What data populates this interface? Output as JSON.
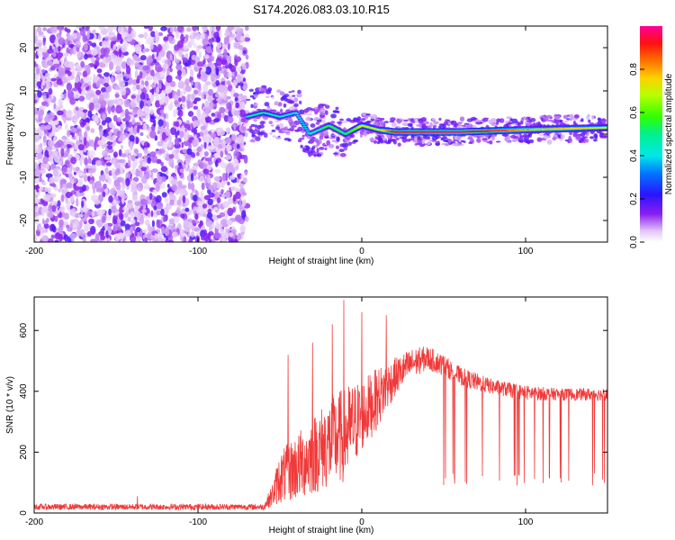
{
  "title": "S174.2026.083.03.10.R15",
  "chart_data": [
    {
      "type": "heatmap",
      "name": "spectrogram",
      "title": "S174.2026.083.03.10.R15",
      "xlabel": "Height of straight line (km)",
      "ylabel": "Frequency (Hz)",
      "xlim": [
        -200,
        150
      ],
      "ylim": [
        -25,
        25
      ],
      "xticks": [
        -200,
        -100,
        0,
        100
      ],
      "yticks": [
        -20,
        -10,
        0,
        10,
        20
      ],
      "noise_region_x": [
        -200,
        -70
      ],
      "signal_trace": [
        {
          "x": -70,
          "y": 4,
          "amp": 0.45
        },
        {
          "x": -60,
          "y": 5,
          "amp": 0.5
        },
        {
          "x": -50,
          "y": 4,
          "amp": 0.45
        },
        {
          "x": -40,
          "y": 5,
          "amp": 0.4
        },
        {
          "x": -32,
          "y": 0,
          "amp": 0.4
        },
        {
          "x": -20,
          "y": 2,
          "amp": 0.55
        },
        {
          "x": -10,
          "y": 0,
          "amp": 0.5
        },
        {
          "x": 0,
          "y": 2,
          "amp": 0.7
        },
        {
          "x": 10,
          "y": 1,
          "amp": 0.65
        },
        {
          "x": 20,
          "y": 0.5,
          "amp": 0.95
        },
        {
          "x": 60,
          "y": 0.5,
          "amp": 1.0
        },
        {
          "x": 100,
          "y": 1,
          "amp": 0.8
        },
        {
          "x": 150,
          "y": 1.5,
          "amp": 0.7
        }
      ],
      "colorbar": {
        "label": "Normalized spectral amplitude",
        "range": [
          0,
          1
        ],
        "ticks": [
          0.0,
          0.2,
          0.4,
          0.6,
          0.8
        ],
        "tick_labels": [
          "0.0",
          "0.2",
          "0.4",
          "0.6",
          "0.8"
        ]
      }
    },
    {
      "type": "line",
      "name": "snr",
      "xlabel": "Height of straight line (km)",
      "ylabel": "SNR (10 * v/v)",
      "xlim": [
        -200,
        150
      ],
      "ylim": [
        0,
        710
      ],
      "xticks": [
        -200,
        -100,
        0,
        100
      ],
      "yticks": [
        0,
        200,
        400,
        600
      ],
      "color": "#f03a3a",
      "envelope": [
        {
          "x": -200,
          "lo": 10,
          "hi": 30
        },
        {
          "x": -60,
          "lo": 10,
          "hi": 30
        },
        {
          "x": -55,
          "lo": 20,
          "hi": 90
        },
        {
          "x": -50,
          "lo": 30,
          "hi": 200
        },
        {
          "x": -40,
          "lo": 40,
          "hi": 260
        },
        {
          "x": -30,
          "lo": 60,
          "hi": 320
        },
        {
          "x": -20,
          "lo": 80,
          "hi": 380
        },
        {
          "x": -10,
          "lo": 100,
          "hi": 420
        },
        {
          "x": 0,
          "lo": 200,
          "hi": 440
        },
        {
          "x": 10,
          "lo": 280,
          "hi": 480
        },
        {
          "x": 20,
          "lo": 380,
          "hi": 510
        },
        {
          "x": 30,
          "lo": 440,
          "hi": 540
        },
        {
          "x": 40,
          "lo": 470,
          "hi": 550
        },
        {
          "x": 50,
          "lo": 450,
          "hi": 520
        },
        {
          "x": 60,
          "lo": 420,
          "hi": 480
        },
        {
          "x": 70,
          "lo": 400,
          "hi": 460
        },
        {
          "x": 80,
          "lo": 390,
          "hi": 440
        },
        {
          "x": 100,
          "lo": 370,
          "hi": 420
        },
        {
          "x": 120,
          "lo": 370,
          "hi": 410
        },
        {
          "x": 150,
          "lo": 370,
          "hi": 410
        }
      ],
      "spikes": [
        {
          "x": -11,
          "y": 700
        },
        {
          "x": -18,
          "y": 620
        },
        {
          "x": 0,
          "y": 660
        },
        {
          "x": 15,
          "y": 650
        },
        {
          "x": -30,
          "y": 560
        },
        {
          "x": -45,
          "y": 520
        },
        {
          "x": -137,
          "y": 55
        }
      ],
      "dropout_region_x": [
        50,
        150
      ],
      "dropout_floor": 90
    }
  ]
}
